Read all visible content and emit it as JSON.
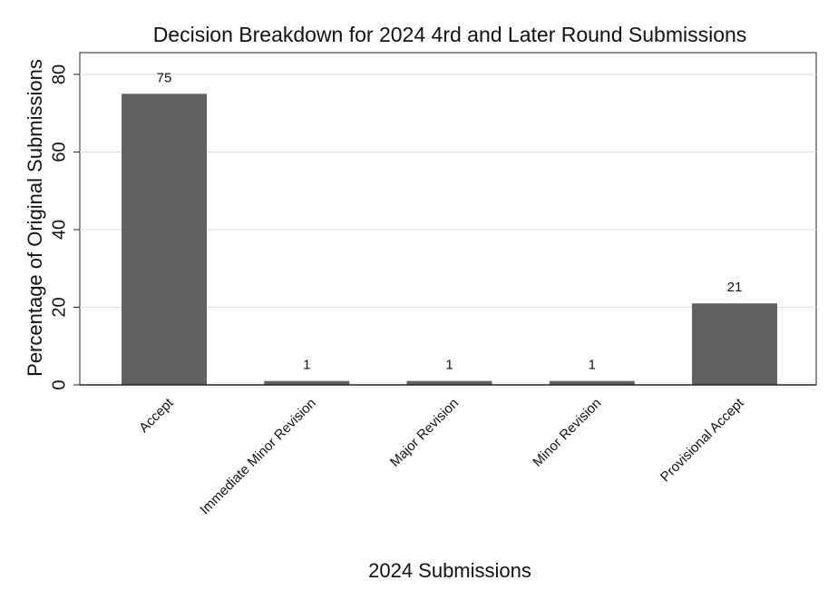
{
  "chart_data": {
    "type": "bar",
    "title": "Decision Breakdown for 2024 4rd and Later Round Submissions",
    "x_label": "2024 Submissions",
    "y_label": "Percentage of Original Submissions",
    "categories": [
      "Accept",
      "Immediate Minor Revision",
      "Major Revision",
      "Minor Revision",
      "Provisional Accept"
    ],
    "values": [
      75,
      1,
      1,
      1,
      21
    ],
    "color": "#616161",
    "ylim": [
      0,
      85.6
    ],
    "yticks": [
      0,
      20,
      40,
      60,
      80
    ],
    "grid": true
  }
}
